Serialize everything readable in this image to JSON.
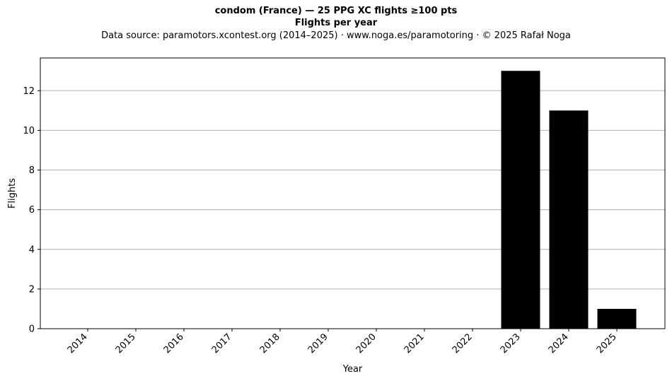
{
  "chart_data": {
    "type": "bar",
    "title": "condom (France)  —  25 PPG XC flights ≥100 pts",
    "subtitle": "Flights per year",
    "source_note": "Data source: paramotors.xcontest.org (2014–2025)  ·  www.noga.es/paramotoring  ·  © 2025 Rafał Noga",
    "xlabel": "Year",
    "ylabel": "Flights",
    "categories": [
      "2014",
      "2015",
      "2016",
      "2017",
      "2018",
      "2019",
      "2020",
      "2021",
      "2022",
      "2023",
      "2024",
      "2025"
    ],
    "values": [
      0,
      0,
      0,
      0,
      0,
      0,
      0,
      0,
      0,
      13,
      11,
      1
    ],
    "ylim": [
      0,
      13.65
    ],
    "yticks": [
      0,
      2,
      4,
      6,
      8,
      10,
      12
    ],
    "grid": "horizontal",
    "bar_color": "#000000",
    "grid_color": "#b0b0b0"
  }
}
